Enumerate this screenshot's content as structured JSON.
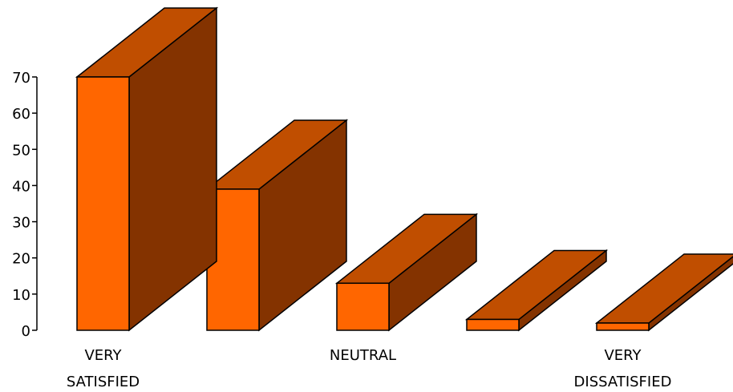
{
  "chart_data": {
    "type": "bar",
    "title": "",
    "xlabel": "",
    "ylabel": "",
    "categories": [
      "VERY SATISFIED",
      "",
      "NEUTRAL",
      "",
      "VERY DISSATISFIED"
    ],
    "category_label_lines": [
      [
        "VERY",
        "SATISFIED"
      ],
      [],
      [
        "NEUTRAL"
      ],
      [],
      [
        "VERY",
        "DISSATISFIED"
      ]
    ],
    "values": [
      70,
      39,
      13,
      3,
      2
    ],
    "ylim": [
      0,
      70
    ],
    "yticks": [
      "0",
      "10",
      "20",
      "30",
      "40",
      "50",
      "60",
      "70"
    ],
    "grid": false,
    "legend": "none",
    "style": "3d",
    "colors": {
      "front": "#FF6600",
      "top": "#C04E00",
      "side": "#843300",
      "outline": "#000000"
    }
  }
}
